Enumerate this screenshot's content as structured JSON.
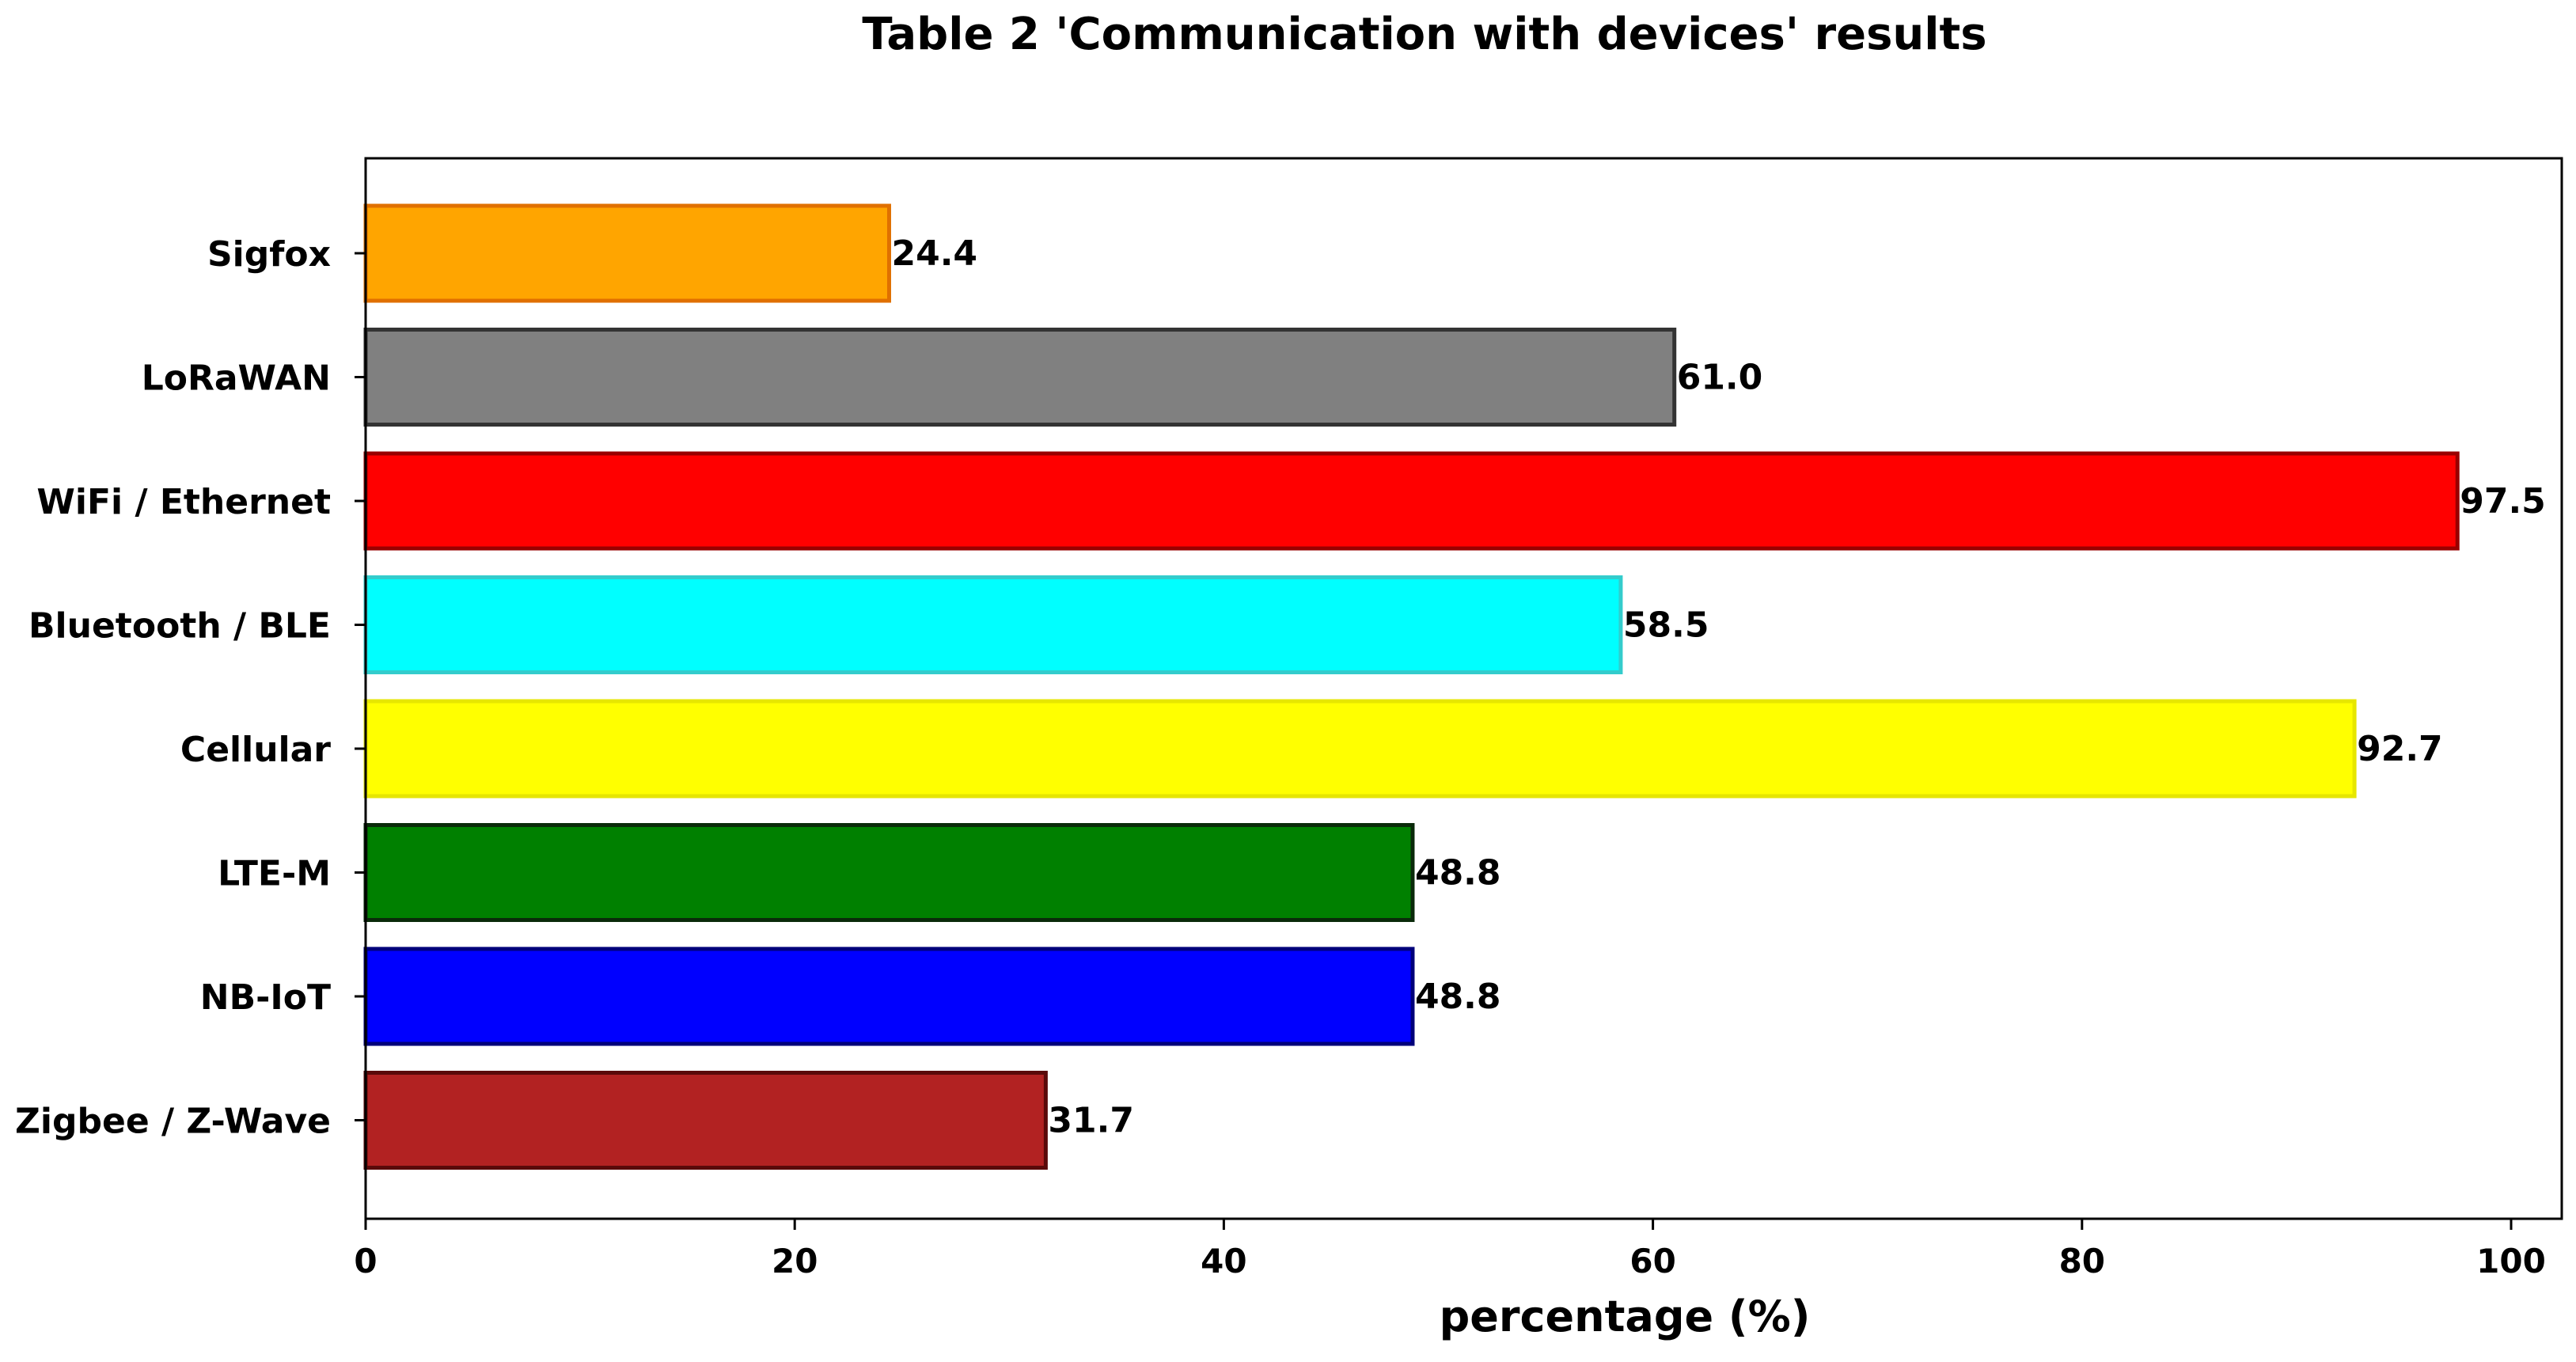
{
  "chart_data": {
    "type": "bar",
    "orientation": "horizontal",
    "title": "Table 2 'Communication with devices' results",
    "xlabel": "percentage (%)",
    "ylabel": "",
    "xlim": [
      0,
      100
    ],
    "xticks": [
      "0",
      "20",
      "40",
      "60",
      "80",
      "100"
    ],
    "grid": false,
    "categories": [
      "Sigfox",
      "LoRaWAN",
      "WiFi / Ethernet",
      "Bluetooth / BLE",
      "Cellular",
      "LTE-M",
      "NB-IoT",
      "Zigbee / Z-Wave"
    ],
    "values": [
      24.4,
      61.0,
      97.5,
      58.5,
      92.7,
      48.8,
      48.8,
      31.7
    ],
    "value_labels": [
      "24.4",
      "61.0",
      "97.5",
      "58.5",
      "92.7",
      "48.8",
      "48.8",
      "31.7"
    ],
    "colors": [
      "#FFA500",
      "#808080",
      "#FF0000",
      "#00FFFF",
      "#FFFF00",
      "#008000",
      "#0000FF",
      "#B22222"
    ],
    "edge_colors": [
      "#E07000",
      "#333333",
      "#990000",
      "#33CCCC",
      "#E6E600",
      "#0A2A0A",
      "#00007A",
      "#5A0A0A"
    ]
  }
}
